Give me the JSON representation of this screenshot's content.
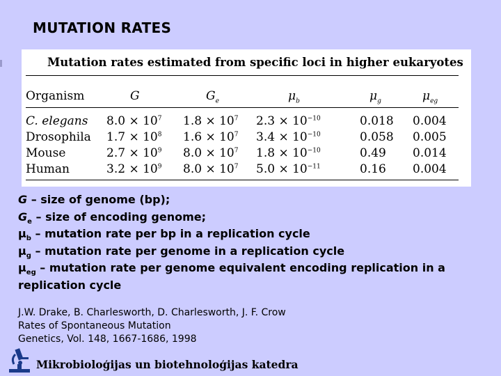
{
  "slide_title": "MUTATION RATES",
  "table": {
    "caption": "Mutation rates estimated from specific loci in higher eukaryotes",
    "headers": {
      "organism": "Organism",
      "G": "G",
      "Ge_main": "G",
      "Ge_sub": "e",
      "mub_main": "μ",
      "mub_sub": "b",
      "mug_main": "μ",
      "mug_sub": "g",
      "mueg_main": "μ",
      "mueg_sub": "eg"
    },
    "rows": [
      {
        "organism": "C. elegans",
        "G_mant": "8.0 × 10",
        "G_exp": "7",
        "Ge_mant": "1.8 × 10",
        "Ge_exp": "7",
        "mub_mant": "2.3 × 10",
        "mub_exp": "−10",
        "mug": "0.018",
        "mueg": "0.004"
      },
      {
        "organism": "Drosophila",
        "G_mant": "1.7 × 10",
        "G_exp": "8",
        "Ge_mant": "1.6 × 10",
        "Ge_exp": "7",
        "mub_mant": "3.4 × 10",
        "mub_exp": "−10",
        "mug": "0.058",
        "mueg": "0.005"
      },
      {
        "organism": "Mouse",
        "G_mant": "2.7 × 10",
        "G_exp": "9",
        "Ge_mant": "8.0 × 10",
        "Ge_exp": "7",
        "mub_mant": "1.8 × 10",
        "mub_exp": "−10",
        "mug": "0.49",
        "mueg": "0.014"
      },
      {
        "organism": "Human",
        "G_mant": "3.2 × 10",
        "G_exp": "9",
        "Ge_mant": "8.0 × 10",
        "Ge_exp": "7",
        "mub_mant": "5.0 × 10",
        "mub_exp": "−11",
        "mug": "0.16",
        "mueg": "0.004"
      }
    ]
  },
  "definitions": {
    "d1_sym": "G",
    "d1_text": " – size of genome (bp);",
    "d2_sym": "G",
    "d2_sub": "e",
    "d2_text": " – size of encoding genome;",
    "d3_sym": "μ",
    "d3_sub": "b",
    "d3_text": " – mutation rate per bp in a replication cycle",
    "d4_sym": "μ",
    "d4_sub": "g",
    "d4_text": " –  mutation rate per genome in a replication cycle",
    "d5_sym": "μ",
    "d5_sub": "eg",
    "d5_text": " –  mutation rate per genome equivalent encoding replication in a replication cycle"
  },
  "reference": {
    "authors": "J.W. Drake, B. Charlesworth, D. Charlesworth, J. F. Crow",
    "title": "Rates of Spontaneous Mutation",
    "journal": "Genetics, Vol. 148, 1667-1686, 1998"
  },
  "footer": {
    "department": "Mikrobioloģijas un biotehnoloģijas katedra",
    "logo_icon": "microscope-icon"
  },
  "colors": {
    "background": "#ccccff",
    "logo_blue": "#1a3a8a"
  }
}
